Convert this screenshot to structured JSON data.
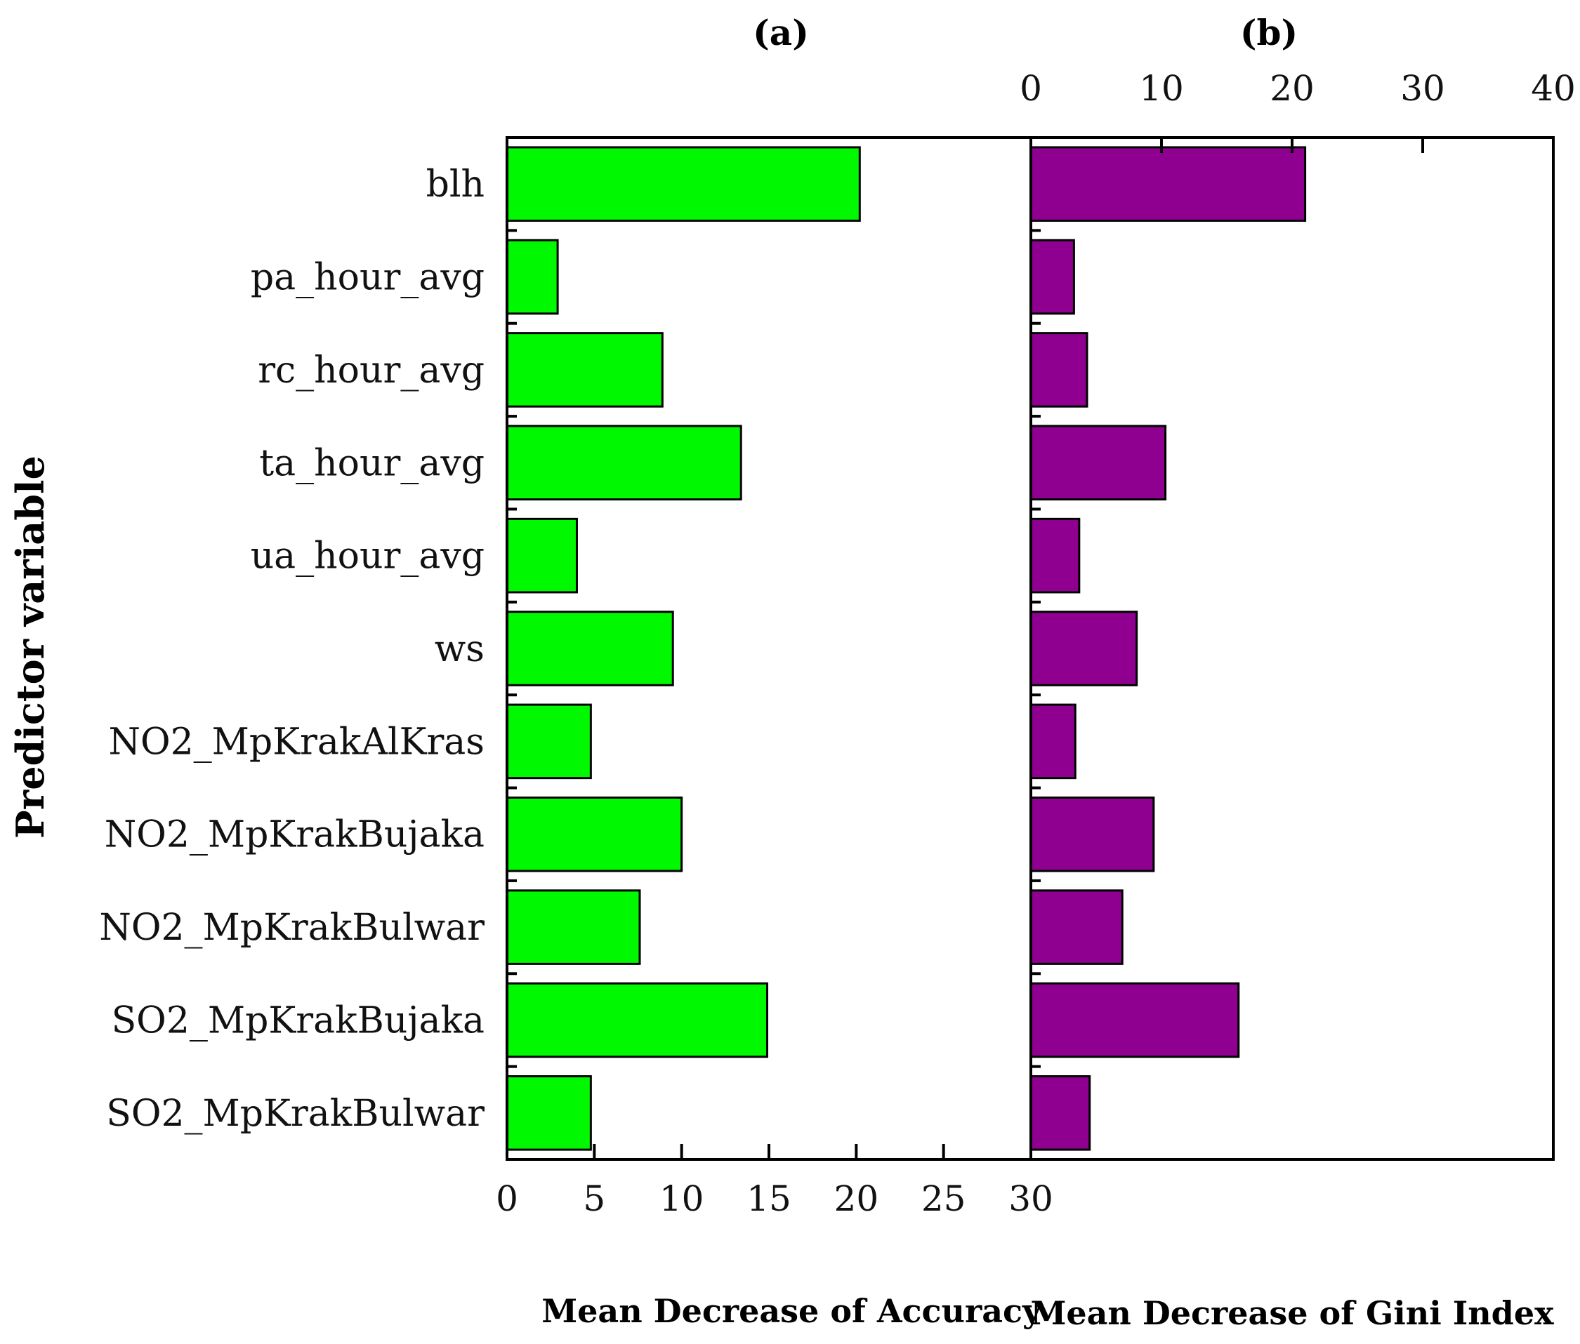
{
  "chart_data": {
    "type": "bar",
    "orientation": "horizontal",
    "ylabel": "Predictor variable",
    "categories": [
      "blh",
      "pa_hour_avg",
      "rc_hour_avg",
      "ta_hour_avg",
      "ua_hour_avg",
      "ws",
      "NO2_MpKrakAlKras",
      "NO2_MpKrakBujaka",
      "NO2_MpKrakBulwar",
      "SO2_MpKrakBujaka",
      "SO2_MpKrakBulwar"
    ],
    "panels": [
      {
        "title": "(a)",
        "xlabel": "Mean Decrease of Accuracy",
        "xlim": [
          0,
          30
        ],
        "ticks": [
          "0",
          "5",
          "10",
          "15",
          "20",
          "25",
          "30"
        ],
        "tick_values": [
          0,
          5,
          10,
          15,
          20,
          25,
          30
        ],
        "tick_position": "bottom",
        "color": "#00f800",
        "values": [
          20.2,
          2.9,
          8.9,
          13.4,
          4.0,
          9.5,
          4.8,
          10.0,
          7.6,
          14.9,
          4.8
        ]
      },
      {
        "title": "(b)",
        "xlabel": "Mean Decrease of Gini Index",
        "xlim": [
          0,
          40
        ],
        "ticks": [
          "0",
          "10",
          "20",
          "30",
          "40"
        ],
        "tick_values": [
          0,
          10,
          20,
          30,
          40
        ],
        "tick_position": "top",
        "color": "#900090",
        "values": [
          21.0,
          3.3,
          4.3,
          10.3,
          3.7,
          8.1,
          3.4,
          9.4,
          7.0,
          15.9,
          4.5
        ]
      }
    ]
  }
}
